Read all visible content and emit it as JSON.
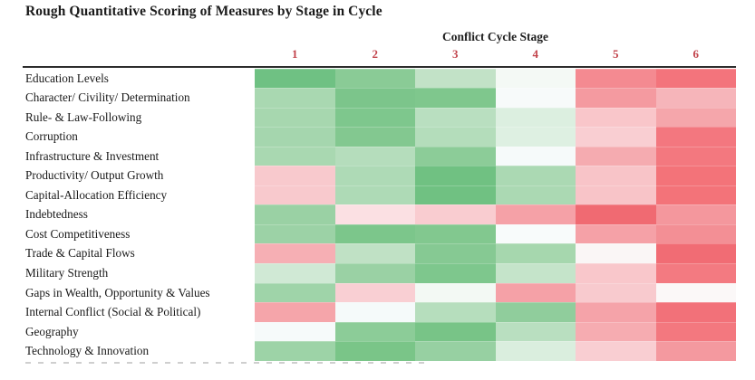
{
  "chart_data": {
    "type": "heatmap",
    "title": "Rough Quantitative Scoring of Measures by Stage in Cycle",
    "column_group_label": "Conflict Cycle Stage",
    "columns": [
      "1",
      "2",
      "3",
      "4",
      "5",
      "6"
    ],
    "column_label_color": "#c2434b",
    "rows": [
      "Education Levels",
      "Character/ Civility/ Determination",
      "Rule- & Law-Following",
      "Corruption",
      "Infrastructure & Investment",
      "Productivity/ Output Growth",
      "Capital-Allocation Efficiency",
      "Indebtedness",
      "Cost Competitiveness",
      "Trade & Capital Flows",
      "Military Strength",
      "Gaps in Wealth, Opportunity & Values",
      "Internal Conflict (Social & Political)",
      "Geography",
      "Technology & Innovation"
    ],
    "cell_colors": [
      [
        "#6fc183",
        "#8acb96",
        "#c2e2c7",
        "#f4f9f5",
        "#f48a91",
        "#f3747c"
      ],
      [
        "#a9d8b1",
        "#7cc58b",
        "#7fc78d",
        "#f7fafa",
        "#f49aa0",
        "#f6b5ba"
      ],
      [
        "#a7d7af",
        "#7ec78d",
        "#b9dfc0",
        "#dcefe0",
        "#f9c6ca",
        "#f5a6ab"
      ],
      [
        "#a5d6ae",
        "#83c890",
        "#b4ddbb",
        "#def0e2",
        "#f9ced2",
        "#f3777f"
      ],
      [
        "#a9d8b1",
        "#b5ddbc",
        "#8ccc98",
        "#f6fafa",
        "#f5abb0",
        "#f3787f"
      ],
      [
        "#f8c9cd",
        "#aedab6",
        "#70c182",
        "#abd9b3",
        "#f8c4c8",
        "#f37379"
      ],
      [
        "#f8c9cd",
        "#aedab6",
        "#70c182",
        "#abd9b3",
        "#f8c4c8",
        "#f37379"
      ],
      [
        "#9ad1a4",
        "#fbe0e3",
        "#f9ccd0",
        "#f5a1a7",
        "#f06a72",
        "#f4979d"
      ],
      [
        "#9cd2a6",
        "#7cc68b",
        "#82c88f",
        "#f8fbfb",
        "#f5a1a7",
        "#f38f95"
      ],
      [
        "#f6afb4",
        "#c0e1c5",
        "#86c993",
        "#a6d7ae",
        "#faf6f6",
        "#f16c74"
      ],
      [
        "#d0e9d5",
        "#9ad1a4",
        "#7ec78d",
        "#c5e4ca",
        "#f9c7cb",
        "#f37a81"
      ],
      [
        "#9fd4a9",
        "#f9cfd3",
        "#f3f9f4",
        "#f5a1a7",
        "#f8cace",
        "#fbf8f8"
      ],
      [
        "#f5a5aa",
        "#f5fafa",
        "#b6debd",
        "#90cd9c",
        "#f5a3a9",
        "#f27179"
      ],
      [
        "#f6fafa",
        "#8ccc98",
        "#78c487",
        "#b9dfc0",
        "#f6acb1",
        "#f3787f"
      ],
      [
        "#9dd3a7",
        "#7ac588",
        "#97d0a2",
        "#daeede",
        "#f9ced2",
        "#f4999f"
      ]
    ],
    "color_semantics": {
      "favorable": "#6fc183",
      "neutral": "#f8fafa",
      "unfavorable": "#f06a72"
    }
  }
}
